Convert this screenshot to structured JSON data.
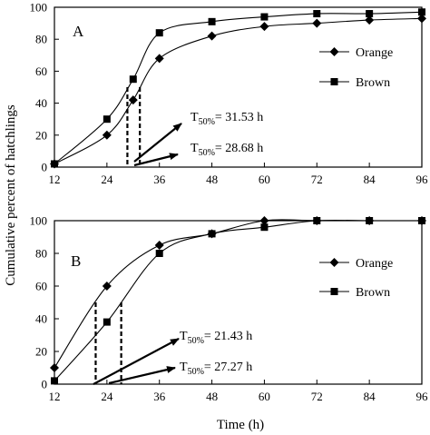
{
  "figure": {
    "ylabel": "Cumulative percent of hatchlings",
    "xlabel": "Time (h)"
  },
  "chart_data": [
    {
      "type": "line",
      "panel": "A",
      "x": [
        12,
        24,
        36,
        48,
        60,
        72,
        84,
        96
      ],
      "xlim": [
        12,
        96
      ],
      "ylim": [
        0,
        100
      ],
      "xticks": [
        12,
        24,
        36,
        48,
        60,
        72,
        84,
        96
      ],
      "yticks": [
        0,
        20,
        40,
        60,
        80,
        100
      ],
      "grid": false,
      "legend_position": "right",
      "series": [
        {
          "name": "Orange",
          "marker": "diamond",
          "x": [
            12,
            24,
            30,
            36,
            48,
            60,
            72,
            84,
            96
          ],
          "values": [
            2,
            20,
            42,
            68,
            82,
            88,
            90,
            92,
            93
          ]
        },
        {
          "name": "Brown",
          "marker": "square",
          "x": [
            12,
            24,
            30,
            36,
            48,
            60,
            72,
            84,
            96
          ],
          "values": [
            2,
            30,
            55,
            84,
            91,
            94,
            96,
            96,
            97
          ]
        }
      ],
      "annotations": [
        {
          "label_prefix": "T",
          "label_subscript": "50%",
          "label_value": "= 31.53 h",
          "x_value": 31.53
        },
        {
          "label_prefix": "T",
          "label_subscript": "50%",
          "label_value": "= 28.68 h",
          "x_value": 28.68
        }
      ]
    },
    {
      "type": "line",
      "panel": "B",
      "x": [
        12,
        24,
        36,
        48,
        60,
        72,
        84,
        96
      ],
      "xlim": [
        12,
        96
      ],
      "ylim": [
        0,
        100
      ],
      "xticks": [
        12,
        24,
        36,
        48,
        60,
        72,
        84,
        96
      ],
      "yticks": [
        0,
        20,
        40,
        60,
        80,
        100
      ],
      "grid": false,
      "legend_position": "right",
      "series": [
        {
          "name": "Orange",
          "marker": "diamond",
          "x": [
            12,
            24,
            36,
            48,
            60,
            72,
            84,
            96
          ],
          "values": [
            10,
            60,
            85,
            92,
            100,
            100,
            100,
            100
          ]
        },
        {
          "name": "Brown",
          "marker": "square",
          "x": [
            12,
            24,
            36,
            48,
            60,
            72,
            84,
            96
          ],
          "values": [
            2,
            38,
            80,
            92,
            96,
            100,
            100,
            100
          ]
        }
      ],
      "annotations": [
        {
          "label_prefix": "T",
          "label_subscript": "50%",
          "label_value": "= 21.43 h",
          "x_value": 21.43
        },
        {
          "label_prefix": "T",
          "label_subscript": "50%",
          "label_value": "= 27.27 h",
          "x_value": 27.27
        }
      ]
    }
  ]
}
